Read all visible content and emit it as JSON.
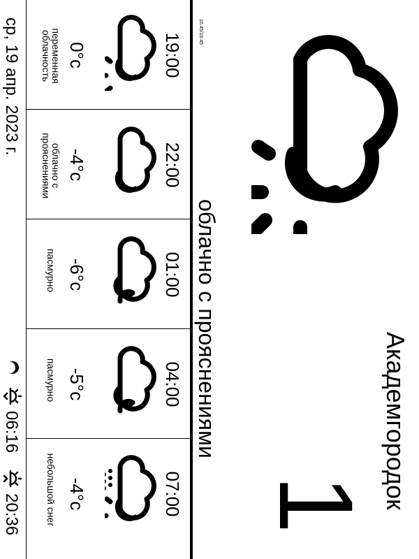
{
  "header": {
    "location": "Академгородок",
    "current_temp": "1",
    "condition": "облачно с прояснениями",
    "updated": "16:45/16:45",
    "icon": "partly-cloudy-icon"
  },
  "forecast": [
    {
      "time": "19:00",
      "temp": "0°c",
      "desc_lines": [
        "переменная",
        "облачность"
      ],
      "icon": "partly-cloudy-icon"
    },
    {
      "time": "22:00",
      "temp": "-4°c",
      "desc_lines": [
        "облачно с",
        "прояснениями"
      ],
      "icon": "cloudy-clearing-icon"
    },
    {
      "time": "01:00",
      "temp": "-6°c",
      "desc_lines": [
        "пасмурно"
      ],
      "icon": "overcast-icon"
    },
    {
      "time": "04:00",
      "temp": "-5°c",
      "desc_lines": [
        "пасмурно"
      ],
      "icon": "overcast-icon"
    },
    {
      "time": "07:00",
      "temp": "-4°c",
      "desc_lines": [
        "небольшой снег"
      ],
      "icon": "light-snow-icon"
    }
  ],
  "footer": {
    "date": "ср, 19 апр. 2023 г.",
    "sunrise": "06:16",
    "sunset": "20:36",
    "moon_icon": "moon-phase-icon",
    "sunrise_icon": "sunrise-icon",
    "sunset_icon": "sunset-icon"
  }
}
